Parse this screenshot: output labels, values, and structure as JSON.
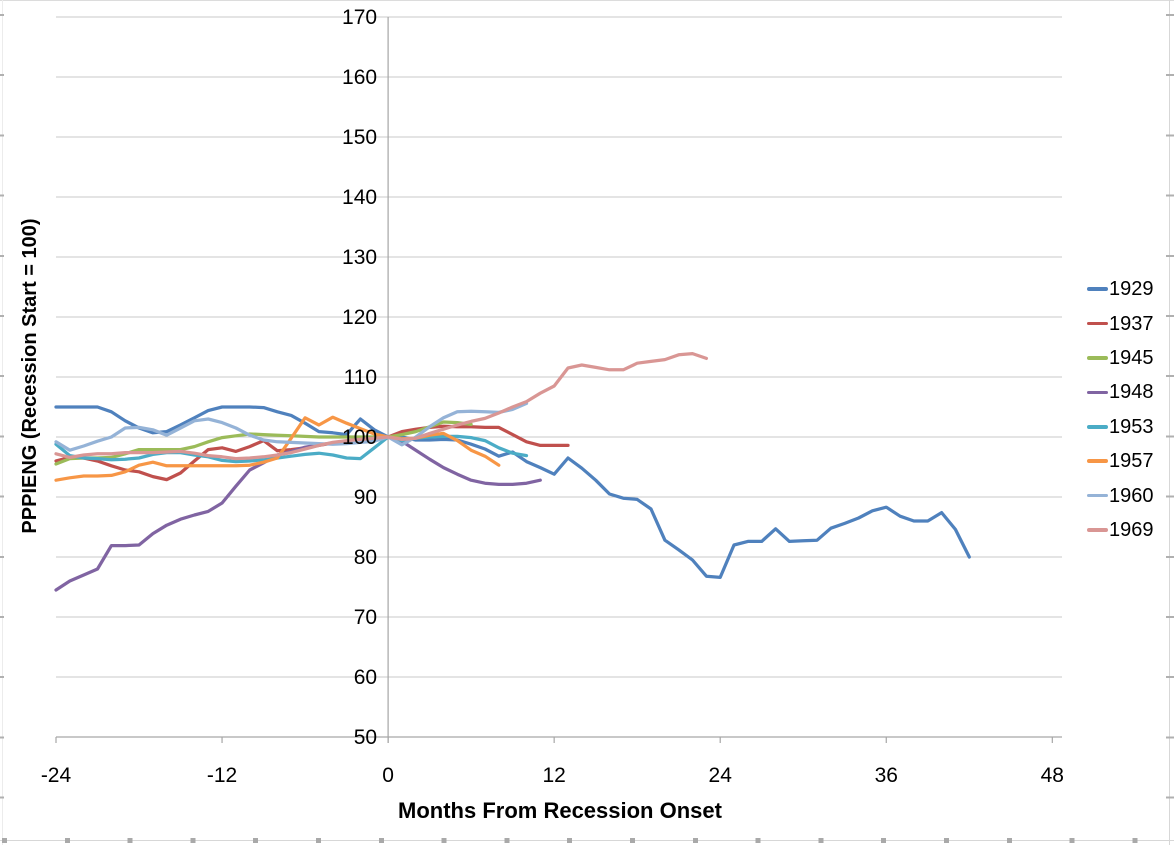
{
  "chart_data": {
    "type": "line",
    "xlabel": "Months From Recession Onset",
    "ylabel": "PPPIENG (Recession Start = 100)",
    "x_axis": {
      "min": -24,
      "max": 48.7,
      "ticks": [
        -24,
        -12,
        0,
        12,
        24,
        36,
        48
      ]
    },
    "y_axis": {
      "min": 50,
      "max": 170,
      "ticks": [
        50,
        60,
        70,
        80,
        90,
        100,
        110,
        120,
        130,
        140,
        150,
        160,
        170
      ]
    },
    "grid": {
      "horizontal": true,
      "vertical": false,
      "color": "#C9C9C9"
    },
    "axis_color": "#A6A6A6",
    "legend_position": "right",
    "note": "each series indexed monthly from start_month; values normalized to 100 at recession onset (month 0)",
    "series": [
      {
        "name": "1929",
        "color": "#4F81BD",
        "start_month": -24,
        "values": [
          105,
          105,
          105,
          105,
          104.2,
          102.7,
          101.5,
          100.7,
          100.9,
          102,
          103.2,
          104.4,
          105,
          105,
          105,
          104.9,
          104.2,
          103.6,
          102.3,
          100.9,
          100.7,
          100.4,
          103,
          101.2,
          100,
          100,
          99.5,
          99.5,
          99.6,
          99.5,
          98.8,
          98,
          96.8,
          97.5,
          95.9,
          94.9,
          93.8,
          96.5,
          94.8,
          92.8,
          90.5,
          89.8,
          89.6,
          88,
          82.8,
          81.2,
          79.5,
          76.8,
          76.6,
          82,
          82.6,
          82.6,
          84.7,
          82.6,
          82.7,
          82.8,
          84.8,
          85.6,
          86.5,
          87.7,
          88.3,
          86.8,
          86,
          86,
          87.4,
          84.6,
          80
        ]
      },
      {
        "name": "1937",
        "color": "#C0504D",
        "start_month": -24,
        "values": [
          96,
          96.6,
          96.5,
          96,
          95.2,
          94.5,
          94.2,
          93.4,
          92.9,
          94,
          96,
          97.9,
          98.2,
          97.6,
          98.4,
          99.4,
          97.7,
          97.9,
          98.2,
          98.6,
          99,
          99.3,
          99.5,
          99.8,
          100,
          100.9,
          101.3,
          101.6,
          101.8,
          101.7,
          101.7,
          101.6,
          101.6,
          100.4,
          99.2,
          98.6,
          98.6,
          98.6
        ]
      },
      {
        "name": "1945",
        "color": "#9BBB59",
        "start_month": -24,
        "values": [
          95.5,
          96.4,
          96.5,
          96.5,
          96.6,
          97.2,
          97.9,
          97.9,
          97.9,
          97.9,
          98.4,
          99.2,
          99.9,
          100.2,
          100.5,
          100.4,
          100.3,
          100.2,
          100.1,
          100,
          100,
          100,
          100,
          100,
          100,
          100.4,
          100.9,
          101.7,
          102.5,
          102.4,
          102.1
        ]
      },
      {
        "name": "1948",
        "color": "#8064A2",
        "start_month": -24,
        "values": [
          74.5,
          76,
          77,
          78,
          81.9,
          81.9,
          82,
          83.9,
          85.3,
          86.3,
          87,
          87.6,
          89,
          91.8,
          94.5,
          95.7,
          97,
          97.6,
          98.3,
          98.7,
          99,
          99.2,
          99.4,
          99.7,
          100,
          99.3,
          97.8,
          96.3,
          94.9,
          93.8,
          92.8,
          92.3,
          92.1,
          92.1,
          92.3,
          92.8
        ]
      },
      {
        "name": "1953",
        "color": "#4BACC6",
        "start_month": -24,
        "values": [
          98.8,
          96.9,
          96.5,
          96.4,
          96.2,
          96.3,
          96.5,
          97.1,
          97.4,
          97.4,
          97,
          96.7,
          96.1,
          95.9,
          96,
          96.2,
          96.5,
          96.8,
          97.1,
          97.3,
          97,
          96.5,
          96.4,
          98.2,
          100,
          99.4,
          99.8,
          100,
          100.1,
          100.1,
          99.9,
          99.4,
          98.2,
          97.3,
          96.9
        ]
      },
      {
        "name": "1957",
        "color": "#F79646",
        "start_month": -24,
        "values": [
          92.8,
          93.2,
          93.5,
          93.5,
          93.6,
          94.2,
          95.3,
          95.8,
          95.2,
          95.2,
          95.2,
          95.2,
          95.2,
          95.2,
          95.3,
          95.8,
          96.5,
          99.8,
          103.2,
          102,
          103.3,
          102.3,
          101.4,
          100.5,
          100,
          99.7,
          99.8,
          100.3,
          100.6,
          99.4,
          97.8,
          96.8,
          95.3
        ]
      },
      {
        "name": "1960",
        "color": "#95B3D7",
        "start_month": -24,
        "values": [
          99.2,
          97.8,
          98.5,
          99.3,
          100,
          101.5,
          101.6,
          101.2,
          100.3,
          101.5,
          102.7,
          103,
          102.4,
          101.5,
          100.3,
          99.5,
          99.2,
          99.1,
          99,
          98.9,
          98.8,
          98.9,
          99.1,
          99.3,
          100,
          98.7,
          100,
          101.7,
          103.2,
          104.2,
          104.3,
          104.2,
          104.1,
          104.6,
          105.6
        ]
      },
      {
        "name": "1969",
        "color": "#D99694",
        "start_month": -24,
        "values": [
          97.2,
          96.6,
          97,
          97.2,
          97.2,
          97.4,
          97.4,
          97.4,
          97.5,
          97.6,
          97.3,
          96.9,
          96.7,
          96.4,
          96.5,
          96.7,
          97,
          97.4,
          98,
          98.6,
          99.1,
          99.4,
          99.6,
          99.8,
          100,
          99.6,
          99.8,
          100.6,
          101.3,
          102,
          102.6,
          103.1,
          104,
          105,
          105.9,
          107.3,
          108.5,
          111.5,
          112,
          111.6,
          111.2,
          111.2,
          112.3,
          112.6,
          112.9,
          113.7,
          113.9,
          113.1
        ]
      }
    ]
  }
}
